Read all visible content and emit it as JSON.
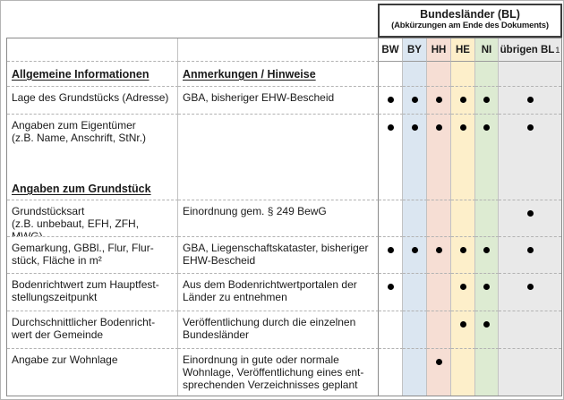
{
  "header": {
    "title": "Bundesländer (BL)",
    "subtitle": "(Abkürzungen am Ende des Dokuments)"
  },
  "columns": [
    {
      "label": "BW",
      "color": "#ffffff"
    },
    {
      "label": "BY",
      "color": "#dbe6f1"
    },
    {
      "label": "HH",
      "color": "#f6ded4"
    },
    {
      "label": "HE",
      "color": "#fdefca"
    },
    {
      "label": "NI",
      "color": "#ddebd2"
    },
    {
      "label": "übrigen BL",
      "footnote": "1",
      "color": "#e9e9e9"
    }
  ],
  "table": {
    "col1_header": "Allgemeine Informationen",
    "col2_header": "Anmerkungen / Hinweise",
    "rows": [
      {
        "label": "Lage des Grundstücks (Adresse)",
        "note": "GBA, bisheriger EHW-Bescheid",
        "dots": [
          true,
          true,
          true,
          true,
          true,
          true
        ]
      },
      {
        "label": "Angaben zum Eigentümer\n(z.B. Name, Anschrift, StNr.)",
        "sublabel": "Angaben zum Grundstück",
        "note": "",
        "dots": [
          true,
          true,
          true,
          true,
          true,
          true
        ]
      },
      {
        "label": "Grundstücksart\n(z.B. unbebaut, EFH, ZFH, MWG)",
        "note": "Einordnung gem. § 249 BewG",
        "dots": [
          false,
          false,
          false,
          false,
          false,
          true
        ]
      },
      {
        "label": "Gemarkung, GBBl., Flur, Flur-\nstück, Fläche in m²",
        "note": "GBA, Liegenschaftskataster, bisheriger\nEHW-Bescheid",
        "dots": [
          true,
          true,
          true,
          true,
          true,
          true
        ]
      },
      {
        "label": "Bodenrichtwert zum Hauptfest-\nstellungszeitpunkt",
        "note": "Aus dem Bodenrichtwertportalen der\nLänder zu entnehmen",
        "dots": [
          true,
          false,
          false,
          true,
          true,
          true
        ]
      },
      {
        "label": "Durchschnittlicher Bodenricht-\nwert der Gemeinde",
        "note": "Veröffentlichung durch die einzelnen\nBundesländer",
        "dots": [
          false,
          false,
          false,
          true,
          true,
          false
        ]
      },
      {
        "label": "Angabe zur Wohnlage",
        "note": "Einordnung in gute oder normale\nWohnlage, Veröffentlichung eines ent-\nsprechenden Verzeichnisses geplant",
        "dots": [
          false,
          false,
          true,
          false,
          false,
          false
        ]
      }
    ]
  }
}
